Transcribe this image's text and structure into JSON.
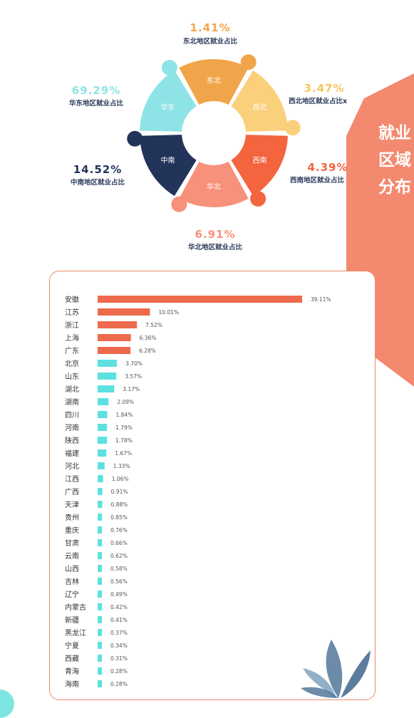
{
  "regions": [
    {
      "name": "东北",
      "pct": "1.41%",
      "label": "东北地区就业占比",
      "value": 1.41,
      "color": "#f1a54b"
    },
    {
      "name": "西北",
      "pct": "3.47%",
      "label": "西北地区就业占比x",
      "value": 3.47,
      "color": "#fbd07c"
    },
    {
      "name": "西南",
      "pct": "4.39%",
      "label": "西南地区就业占比",
      "value": 4.39,
      "color": "#f4643f"
    },
    {
      "name": "华北",
      "pct": "6.91%",
      "label": "华北地区就业占比",
      "value": 6.91,
      "color": "#f7917b"
    },
    {
      "name": "中南",
      "pct": "14.52%",
      "label": "中南地区就业占比",
      "value": 14.52,
      "color": "#22345a"
    },
    {
      "name": "华东",
      "pct": "69.29%",
      "label": "华东地区就业占比",
      "value": 69.29,
      "color": "#8ee3e6"
    }
  ],
  "banner_title": "就业区域分布",
  "chart_data": {
    "type": "bar",
    "orientation": "horizontal",
    "categories": [
      "安徽",
      "江苏",
      "浙江",
      "上海",
      "广东",
      "北京",
      "山东",
      "湖北",
      "湖南",
      "四川",
      "河南",
      "陕西",
      "福建",
      "河北",
      "江西",
      "广西",
      "天津",
      "贵州",
      "重庆",
      "甘肃",
      "云南",
      "山西",
      "吉林",
      "辽宁",
      "内蒙古",
      "新疆",
      "黑龙江",
      "宁夏",
      "西藏",
      "青海",
      "海南"
    ],
    "values": [
      39.11,
      10.01,
      7.52,
      6.36,
      6.28,
      3.7,
      3.57,
      3.17,
      2.09,
      1.84,
      1.79,
      1.78,
      1.67,
      1.33,
      1.06,
      0.91,
      0.88,
      0.85,
      0.76,
      0.66,
      0.62,
      0.58,
      0.56,
      0.49,
      0.42,
      0.41,
      0.37,
      0.34,
      0.31,
      0.28,
      0.28
    ],
    "labels": [
      "39.11%",
      "10.01%",
      "7.52%",
      "6.36%",
      "6.28%",
      "3.70%",
      "3.57%",
      "3.17%",
      "2.09%",
      "1.84%",
      "1.79%",
      "1.78%",
      "1.67%",
      "1.33%",
      "1.06%",
      "0.91%",
      "0.88%",
      "0.85%",
      "0.76%",
      "0.66%",
      "0.62%",
      "0.58%",
      "0.56%",
      "0.49%",
      "0.42%",
      "0.41%",
      "0.37%",
      "0.34%",
      "0.31%",
      "0.28%",
      "0.28%"
    ],
    "colors": {
      "top": "#ee6a4c",
      "rest": "#5ce1e0"
    },
    "highlight_count": 5,
    "title": "",
    "xlabel": "",
    "ylabel": ""
  }
}
